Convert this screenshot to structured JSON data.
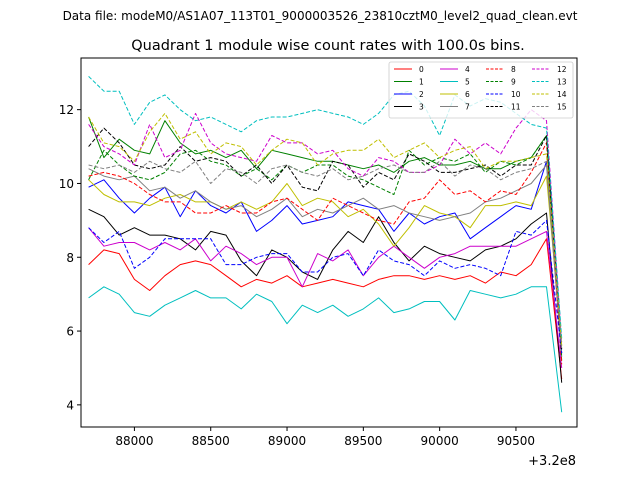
{
  "header": {
    "text": "Data file: modeM0/AS1A07_113T01_9000003526_23810cztM0_level2_quad_clean.evt"
  },
  "chart_data": {
    "type": "line",
    "title": "Quadrant 1 module wise count rates with 100.0s bins.",
    "xlabel": "",
    "ylabel": "",
    "x_offset_label": "+3.2e8",
    "xlim": [
      87650,
      90900
    ],
    "ylim": [
      3.4,
      13.4
    ],
    "x_ticks": [
      88000,
      88500,
      89000,
      89500,
      90000,
      90500
    ],
    "x_tick_labels": [
      "88000",
      "88500",
      "89000",
      "89500",
      "90000",
      "90500"
    ],
    "y_ticks": [
      4,
      6,
      8,
      10,
      12
    ],
    "y_tick_labels": [
      "4",
      "6",
      "8",
      "10",
      "12"
    ],
    "x": [
      87700,
      87800,
      87900,
      88000,
      88100,
      88200,
      88300,
      88400,
      88500,
      88600,
      88700,
      88800,
      88900,
      89000,
      89100,
      89200,
      89300,
      89400,
      89500,
      89600,
      89700,
      89800,
      89900,
      90000,
      90100,
      90200,
      90300,
      90400,
      90500,
      90600,
      90700,
      90800
    ],
    "legend_position": "top-right",
    "series": [
      {
        "name": "0",
        "color": "#ff0000",
        "dash": "solid",
        "values": [
          7.8,
          8.2,
          8.1,
          7.4,
          7.1,
          7.5,
          7.8,
          7.9,
          7.8,
          7.5,
          7.2,
          7.4,
          7.3,
          7.5,
          7.2,
          7.3,
          7.4,
          7.3,
          7.2,
          7.4,
          7.5,
          7.5,
          7.4,
          7.5,
          7.4,
          7.5,
          7.3,
          7.6,
          7.5,
          7.8,
          8.5,
          4.7
        ]
      },
      {
        "name": "1",
        "color": "#008000",
        "dash": "solid",
        "values": [
          11.8,
          10.7,
          11.2,
          10.9,
          10.8,
          11.7,
          11.1,
          10.8,
          10.9,
          10.7,
          10.9,
          10.4,
          10.9,
          10.8,
          10.7,
          10.6,
          10.6,
          10.5,
          10.4,
          10.5,
          10.3,
          10.6,
          10.7,
          10.5,
          10.5,
          10.6,
          10.4,
          10.4,
          10.6,
          10.7,
          11.3,
          5.2
        ]
      },
      {
        "name": "2",
        "color": "#0000ff",
        "dash": "solid",
        "values": [
          9.9,
          10.1,
          9.6,
          9.2,
          9.6,
          9.9,
          9.1,
          9.8,
          9.4,
          9.2,
          9.5,
          8.7,
          9.0,
          9.4,
          8.9,
          9.0,
          9.1,
          9.5,
          9.4,
          9.3,
          8.7,
          9.2,
          8.9,
          9.1,
          9.2,
          8.5,
          8.8,
          9.1,
          9.4,
          9.3,
          10.6,
          5.4
        ]
      },
      {
        "name": "3",
        "color": "#000000",
        "dash": "solid",
        "values": [
          9.3,
          9.1,
          8.6,
          8.8,
          8.6,
          8.6,
          8.5,
          8.2,
          8.7,
          8.6,
          7.9,
          7.5,
          8.2,
          8.0,
          7.6,
          7.4,
          8.2,
          8.7,
          8.4,
          9.1,
          8.4,
          7.9,
          8.3,
          8.1,
          8.0,
          7.9,
          8.2,
          8.3,
          8.5,
          8.9,
          9.2,
          4.6
        ]
      },
      {
        "name": "4",
        "color": "#cc00cc",
        "dash": "solid",
        "values": [
          8.8,
          8.3,
          8.4,
          8.4,
          8.2,
          8.4,
          8.2,
          8.5,
          7.9,
          8.3,
          8.1,
          7.8,
          8.0,
          8.0,
          7.2,
          8.1,
          7.9,
          8.2,
          7.5,
          8.0,
          8.3,
          8.0,
          7.7,
          8.0,
          8.1,
          8.3,
          8.3,
          8.3,
          8.3,
          8.5,
          8.7,
          5.0
        ]
      },
      {
        "name": "5",
        "color": "#00bfbf",
        "dash": "solid",
        "values": [
          6.9,
          7.2,
          7.0,
          6.5,
          6.4,
          6.7,
          6.9,
          7.1,
          6.9,
          6.9,
          6.6,
          7.0,
          6.8,
          6.2,
          6.7,
          6.5,
          6.7,
          6.4,
          6.6,
          6.9,
          6.5,
          6.6,
          6.8,
          6.8,
          6.3,
          7.1,
          7.0,
          6.9,
          7.0,
          7.2,
          7.2,
          3.8
        ]
      },
      {
        "name": "6",
        "color": "#bfbf00",
        "dash": "solid",
        "values": [
          10.1,
          9.7,
          9.5,
          9.5,
          9.4,
          9.6,
          9.7,
          9.5,
          9.5,
          9.3,
          9.5,
          9.3,
          9.5,
          10.0,
          9.4,
          9.6,
          9.5,
          9.1,
          9.3,
          8.9,
          8.3,
          8.8,
          9.4,
          9.2,
          9.1,
          8.8,
          9.4,
          9.4,
          9.5,
          9.4,
          10.2,
          5.6
        ]
      },
      {
        "name": "7",
        "color": "#808080",
        "dash": "solid",
        "values": [
          10.4,
          10.2,
          10.1,
          10.2,
          9.8,
          9.9,
          9.6,
          9.8,
          9.5,
          9.3,
          9.4,
          9.1,
          9.3,
          9.6,
          9.1,
          9.3,
          9.2,
          9.4,
          9.6,
          9.3,
          9.4,
          9.2,
          9.1,
          9.0,
          9.1,
          9.2,
          9.5,
          9.6,
          9.8,
          10.0,
          10.5,
          5.3
        ]
      },
      {
        "name": "8",
        "color": "#ff0000",
        "dash": "dashed",
        "values": [
          10.2,
          10.3,
          10.2,
          10.0,
          9.7,
          9.5,
          9.5,
          9.2,
          9.2,
          9.4,
          9.2,
          9.2,
          9.5,
          9.6,
          9.3,
          9.0,
          9.6,
          9.4,
          9.2,
          9.0,
          8.9,
          9.5,
          9.6,
          10.1,
          9.7,
          9.8,
          9.5,
          9.8,
          9.7,
          10.3,
          11.1,
          5.1
        ]
      },
      {
        "name": "9",
        "color": "#008000",
        "dash": "dashed",
        "values": [
          10.1,
          10.9,
          10.5,
          10.2,
          10.1,
          10.3,
          10.8,
          10.9,
          10.6,
          10.5,
          10.2,
          10.4,
          10.1,
          10.5,
          10.3,
          10.5,
          10.5,
          10.2,
          10.1,
          9.9,
          9.7,
          10.9,
          10.5,
          10.7,
          10.6,
          10.8,
          10.3,
          10.6,
          10.5,
          10.7,
          11.3,
          5.3
        ]
      },
      {
        "name": "10",
        "color": "#0000ff",
        "dash": "dashed",
        "values": [
          8.8,
          8.4,
          8.7,
          7.7,
          8.0,
          8.5,
          8.5,
          8.5,
          8.5,
          7.8,
          7.8,
          8.0,
          8.1,
          8.1,
          7.6,
          7.6,
          8.0,
          8.1,
          7.5,
          8.2,
          7.9,
          7.8,
          7.5,
          7.9,
          7.7,
          7.8,
          7.7,
          7.5,
          8.7,
          8.6,
          9.0,
          5.4
        ]
      },
      {
        "name": "11",
        "color": "#000000",
        "dash": "dashed",
        "values": [
          11.0,
          11.5,
          11.1,
          10.5,
          10.4,
          10.5,
          11.0,
          10.6,
          10.7,
          10.6,
          10.2,
          10.5,
          10.0,
          10.5,
          9.9,
          9.8,
          10.6,
          10.5,
          9.9,
          10.3,
          10.1,
          10.8,
          10.6,
          10.3,
          10.3,
          10.4,
          10.5,
          10.2,
          10.5,
          10.5,
          11.3,
          5.5
        ]
      },
      {
        "name": "12",
        "color": "#cc00cc",
        "dash": "dashed",
        "values": [
          11.6,
          11.0,
          10.8,
          10.5,
          11.6,
          10.7,
          10.9,
          11.9,
          11.1,
          10.8,
          10.7,
          10.6,
          11.3,
          11.1,
          11.1,
          10.8,
          10.9,
          10.4,
          10.2,
          10.7,
          10.6,
          10.3,
          10.3,
          10.5,
          11.2,
          10.8,
          11.1,
          10.8,
          11.5,
          12.0,
          11.7,
          5.7
        ]
      },
      {
        "name": "13",
        "color": "#00bfbf",
        "dash": "dashed",
        "values": [
          12.9,
          12.5,
          12.5,
          11.6,
          12.2,
          12.4,
          12.0,
          11.7,
          11.8,
          11.6,
          11.4,
          11.7,
          11.8,
          11.8,
          11.9,
          12.0,
          11.9,
          11.8,
          11.6,
          11.9,
          12.4,
          12.5,
          12.1,
          11.3,
          12.4,
          12.1,
          12.3,
          12.2,
          11.9,
          11.6,
          11.5,
          5.8
        ]
      },
      {
        "name": "14",
        "color": "#bfbf00",
        "dash": "dashed",
        "values": [
          11.8,
          11.1,
          11.0,
          10.6,
          11.4,
          11.9,
          11.2,
          11.4,
          10.8,
          11.1,
          11.0,
          10.5,
          10.9,
          11.2,
          11.1,
          10.5,
          10.8,
          10.9,
          10.9,
          11.2,
          10.7,
          10.9,
          11.1,
          10.7,
          10.9,
          11.0,
          10.4,
          10.6,
          10.6,
          10.7,
          10.8,
          5.6
        ]
      },
      {
        "name": "15",
        "color": "#808080",
        "dash": "dashed",
        "values": [
          10.5,
          10.4,
          10.5,
          10.3,
          10.6,
          10.4,
          10.3,
          10.6,
          10.0,
          10.4,
          10.3,
          10.0,
          10.4,
          10.5,
          10.3,
          10.2,
          10.4,
          10.1,
          10.2,
          10.4,
          10.5,
          10.3,
          10.3,
          10.6,
          10.2,
          10.5,
          10.4,
          10.1,
          10.3,
          10.4,
          10.6,
          5.5
        ]
      }
    ]
  }
}
